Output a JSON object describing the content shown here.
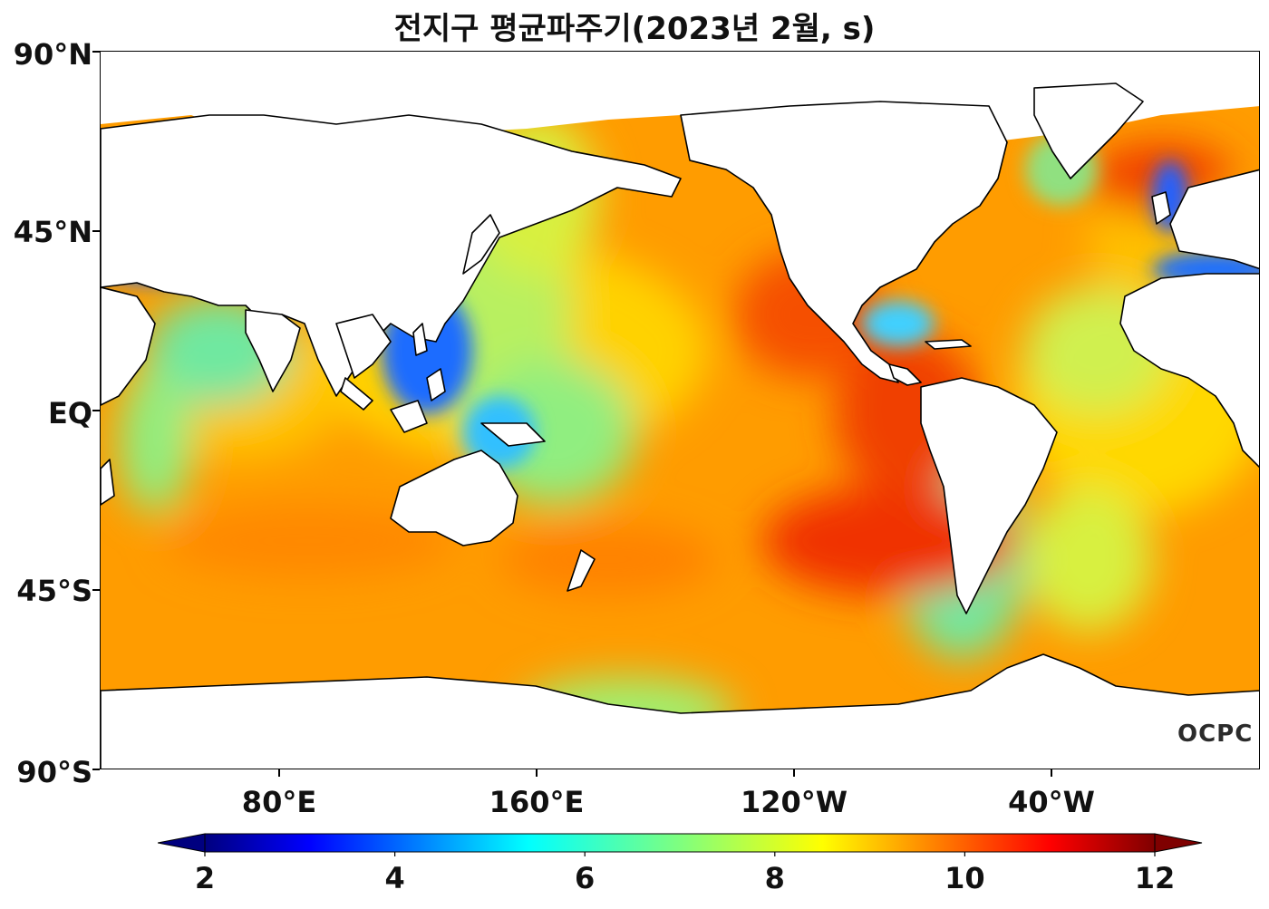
{
  "title": "전지구 평균파주기(2023년 2월, s)",
  "watermark": "OCPC",
  "map": {
    "lat_labels": [
      "90°N",
      "45°N",
      "EQ",
      "45°S",
      "90°S"
    ],
    "lon_labels": [
      "80°E",
      "160°E",
      "120°W",
      "40°W"
    ]
  },
  "colorbar": {
    "min": 2,
    "max": 12,
    "ticks": [
      "2",
      "4",
      "6",
      "8",
      "10",
      "12"
    ],
    "colormap": "jet",
    "extend": "both"
  },
  "colors": {
    "land": "#ffffff",
    "coastline": "#000000",
    "open_ocean": "#ff9a00",
    "high_period": "#e01a00",
    "low_period": "#0050ff"
  }
}
